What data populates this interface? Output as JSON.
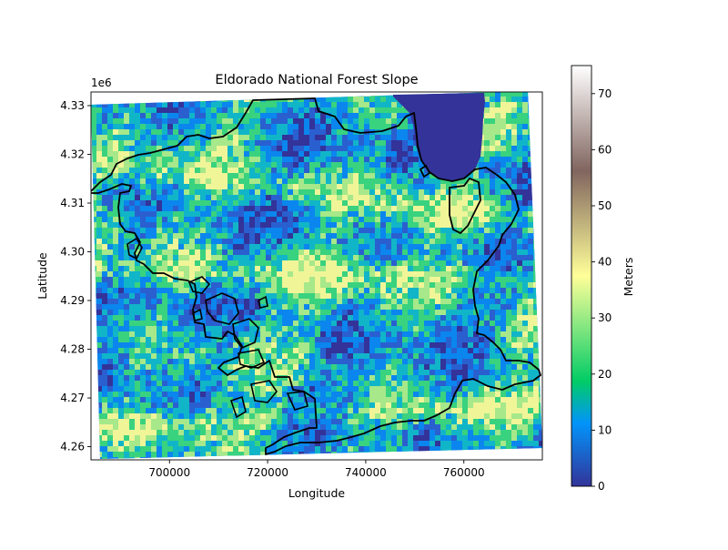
{
  "chart_data": {
    "type": "heatmap",
    "title": "Eldorado National Forest Slope",
    "xlabel": "Longitude",
    "ylabel": "Latitude",
    "y_offset_label": "1e6",
    "xlim": [
      684000,
      776000
    ],
    "ylim": [
      4.2573,
      4.3328
    ],
    "x_ticks": [
      700000,
      720000,
      740000,
      760000
    ],
    "x_tick_labels": [
      "700000",
      "720000",
      "740000",
      "760000"
    ],
    "y_ticks": [
      4.26,
      4.27,
      4.28,
      4.29,
      4.3,
      4.31,
      4.32,
      4.33
    ],
    "y_tick_labels": [
      "4.26",
      "4.27",
      "4.28",
      "4.29",
      "4.30",
      "4.31",
      "4.32",
      "4.33"
    ],
    "colorbar": {
      "label": "Meters",
      "range": [
        0,
        75
      ],
      "ticks": [
        0,
        10,
        20,
        30,
        40,
        50,
        60,
        70
      ],
      "tick_labels": [
        "0",
        "10",
        "20",
        "30",
        "40",
        "50",
        "60",
        "70"
      ],
      "colormap": "terrain",
      "colormap_stops": [
        "#333399",
        "#0294fa",
        "#01cc66",
        "#ffff99",
        "#81655f",
        "#ffffff"
      ]
    },
    "boundary_color": "#000000",
    "lake_color": "#333399",
    "grid": false,
    "legend": "none"
  }
}
